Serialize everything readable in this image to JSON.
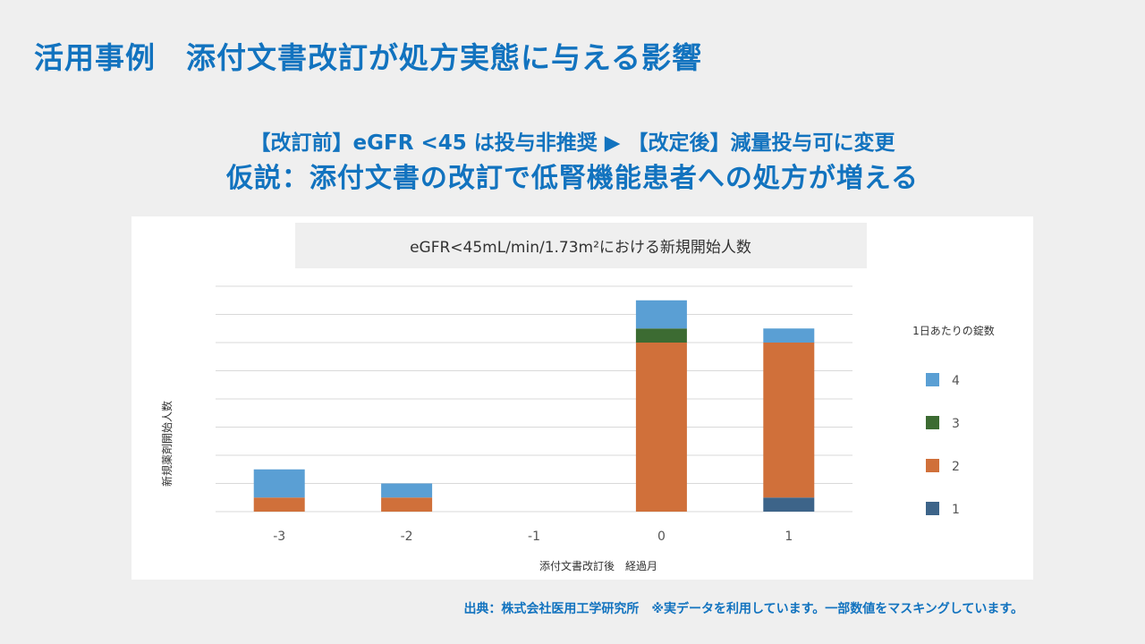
{
  "slide": {
    "title": "活用事例　添付文書改訂が処方実態に与える影響",
    "subtitle_line1": "【改訂前】eGFR <45 は投与非推奨 ▶ 【改定後】減量投与可に変更",
    "subtitle_line2": "仮説：添付文書の改訂で低腎機能患者への処方が増える",
    "source_note": "出典：株式会社医用工学研究所　※実データを利用しています。一部数値をマスキングしています。"
  },
  "colors": {
    "accent": "#1273bf",
    "series_1": "#3d6489",
    "series_2": "#d0703a",
    "series_3": "#3c6b32",
    "series_4": "#5a9fd4",
    "gridline": "#d9d9d9",
    "chart_title_bg": "#efefef"
  },
  "chart_data": {
    "type": "bar",
    "stacked": true,
    "title": "eGFR<45mL/min/1.73m²における新規開始人数",
    "xlabel": "添付文書改訂後　経過月",
    "ylabel": "新規薬剤開始人数",
    "categories": [
      "-3",
      "-2",
      "-1",
      "0",
      "1"
    ],
    "ylim": [
      0,
      8
    ],
    "grid": true,
    "y_tick_labels_shown": false,
    "legend_title": "1日あたりの錠数",
    "legend_position": "right",
    "series": [
      {
        "name": "1",
        "color": "#3d6489",
        "values": [
          0,
          0,
          0,
          0,
          0.5
        ]
      },
      {
        "name": "2",
        "color": "#d0703a",
        "values": [
          0.5,
          0.5,
          0,
          6,
          5.5
        ]
      },
      {
        "name": "3",
        "color": "#3c6b32",
        "values": [
          0,
          0,
          0,
          0.5,
          0
        ]
      },
      {
        "name": "4",
        "color": "#5a9fd4",
        "values": [
          1,
          0.5,
          0,
          1,
          0.5
        ]
      }
    ],
    "legend_order": [
      "4",
      "3",
      "2",
      "1"
    ]
  }
}
